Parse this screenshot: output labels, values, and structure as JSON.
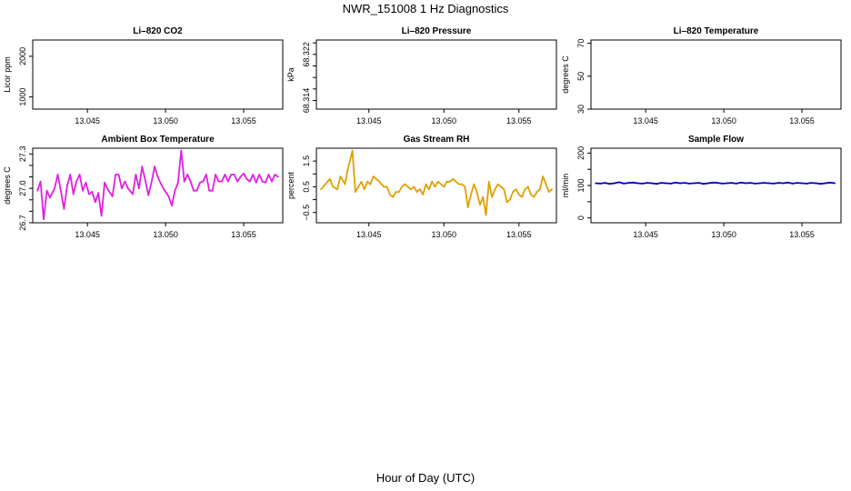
{
  "figure": {
    "title": "NWR_151008  1 Hz Diagnostics",
    "xlabel": "Hour of Day (UTC)"
  },
  "chart_data": [
    {
      "type": "line",
      "title": "Li–820 CO2",
      "ylabel": "Licor ppm",
      "xlim": [
        13.0415,
        13.0575
      ],
      "ylim": [
        700,
        2400
      ],
      "xticks": [
        13.045,
        13.05,
        13.055
      ],
      "xtick_labels": [
        "13.045",
        "13.050",
        "13.055"
      ],
      "yticks": [
        1000,
        2000
      ],
      "ytick_labels": [
        "1000",
        "2000"
      ],
      "series": [
        {
          "x": [],
          "y": [],
          "color": "#000000"
        }
      ]
    },
    {
      "type": "line",
      "title": "Li–820 Pressure",
      "ylabel": "kPa",
      "xlim": [
        13.0415,
        13.0575
      ],
      "ylim": [
        68.3125,
        68.3245
      ],
      "xticks": [
        13.045,
        13.05,
        13.055
      ],
      "xtick_labels": [
        "13.045",
        "13.050",
        "13.055"
      ],
      "yticks": [
        68.314,
        68.316,
        68.318,
        68.32,
        68.322,
        68.324
      ],
      "ytick_labels": [
        "68.314",
        "",
        "",
        "",
        "68.322",
        ""
      ],
      "series": [
        {
          "x": [],
          "y": [],
          "color": "#000000"
        }
      ]
    },
    {
      "type": "line",
      "title": "Li–820 Temperature",
      "ylabel": "degrees C",
      "xlim": [
        13.0415,
        13.0575
      ],
      "ylim": [
        30,
        72
      ],
      "xticks": [
        13.045,
        13.05,
        13.055
      ],
      "xtick_labels": [
        "13.045",
        "13.050",
        "13.055"
      ],
      "yticks": [
        30,
        50,
        70
      ],
      "ytick_labels": [
        "30",
        "50",
        "70"
      ],
      "series": [
        {
          "x": [],
          "y": [],
          "color": "#000000"
        }
      ]
    },
    {
      "type": "line",
      "title": "Ambient Box Temperature",
      "ylabel": "degrees C",
      "xlim": [
        13.0415,
        13.0575
      ],
      "ylim": [
        26.7,
        27.35
      ],
      "xticks": [
        13.045,
        13.05,
        13.055
      ],
      "xtick_labels": [
        "13.045",
        "13.050",
        "13.055"
      ],
      "yticks": [
        26.7,
        26.8,
        26.9,
        27.0,
        27.1,
        27.2,
        27.3
      ],
      "ytick_labels": [
        "26.7",
        "",
        "",
        "27.0",
        "",
        "",
        "27.3"
      ],
      "series": [
        {
          "color": "#e020e0",
          "x": [
            13.0418,
            13.042,
            13.0422,
            13.0424,
            13.0426,
            13.0429,
            13.0431,
            13.0433,
            13.0435,
            13.0437,
            13.0439,
            13.0441,
            13.0443,
            13.0445,
            13.0447,
            13.0449,
            13.0451,
            13.0453,
            13.0455,
            13.0457,
            13.0459,
            13.0461,
            13.0463,
            13.0466,
            13.0468,
            13.047,
            13.0472,
            13.0474,
            13.0476,
            13.0479,
            13.0481,
            13.0483,
            13.0485,
            13.0487,
            13.0489,
            13.0491,
            13.0493,
            13.0495,
            13.0497,
            13.0499,
            13.0502,
            13.0504,
            13.0506,
            13.0508,
            13.051,
            13.0512,
            13.0514,
            13.0516,
            13.0518,
            13.052,
            13.0522,
            13.0524,
            13.0526,
            13.0528,
            13.053,
            13.0532,
            13.0534,
            13.0536,
            13.0538,
            13.054,
            13.0542,
            13.0544,
            13.0546,
            13.0548,
            13.055,
            13.0552,
            13.0554,
            13.0556,
            13.0558,
            13.056,
            13.0562,
            13.0564,
            13.0566,
            13.0568,
            13.057,
            13.0572
          ],
          "y": [
            26.98,
            27.06,
            26.73,
            26.98,
            26.92,
            27.0,
            27.12,
            26.98,
            26.82,
            27.02,
            27.12,
            26.95,
            27.06,
            27.12,
            26.98,
            27.05,
            26.95,
            26.97,
            26.88,
            26.96,
            26.76,
            27.05,
            26.99,
            26.93,
            27.12,
            27.12,
            27.0,
            27.06,
            27.0,
            26.95,
            27.12,
            27.0,
            27.19,
            27.07,
            26.94,
            27.05,
            27.19,
            27.1,
            27.04,
            26.99,
            26.93,
            26.85,
            26.98,
            27.05,
            27.33,
            27.06,
            27.12,
            27.06,
            26.98,
            26.98,
            27.05,
            27.06,
            27.12,
            26.98,
            26.98,
            27.12,
            27.06,
            27.06,
            27.12,
            27.06,
            27.12,
            27.12,
            27.06,
            27.1,
            27.13,
            27.08,
            27.06,
            27.12,
            27.05,
            27.12,
            27.06,
            27.05,
            27.12,
            27.06,
            27.12,
            27.1
          ]
        }
      ]
    },
    {
      "type": "line",
      "title": "Gas Stream RH",
      "ylabel": "percent",
      "xlim": [
        13.0415,
        13.0575
      ],
      "ylim": [
        -0.9,
        2.0
      ],
      "xticks": [
        13.045,
        13.05,
        13.055
      ],
      "xtick_labels": [
        "13.045",
        "13.050",
        "13.055"
      ],
      "yticks": [
        -0.5,
        0.0,
        0.5,
        1.0,
        1.5
      ],
      "ytick_labels": [
        "−0.5",
        "",
        "0.5",
        "",
        "1.5"
      ],
      "series": [
        {
          "color": "#e0a000",
          "x": [
            13.0418,
            13.0421,
            13.0424,
            13.0426,
            13.0429,
            13.0431,
            13.0434,
            13.0436,
            13.0439,
            13.0441,
            13.0443,
            13.0445,
            13.0447,
            13.0449,
            13.0451,
            13.0453,
            13.0455,
            13.0457,
            13.046,
            13.0462,
            13.0464,
            13.0466,
            13.0468,
            13.047,
            13.0472,
            13.0474,
            13.0476,
            13.0478,
            13.048,
            13.0482,
            13.0484,
            13.0486,
            13.0488,
            13.049,
            13.0492,
            13.0494,
            13.0496,
            13.0498,
            13.05,
            13.0502,
            13.0504,
            13.0506,
            13.0508,
            13.051,
            13.0512,
            13.0514,
            13.0516,
            13.0518,
            13.052,
            13.0522,
            13.0524,
            13.0526,
            13.0528,
            13.053,
            13.0532,
            13.0534,
            13.0536,
            13.0538,
            13.054,
            13.0542,
            13.0544,
            13.0546,
            13.0548,
            13.055,
            13.0552,
            13.0554,
            13.0556,
            13.0558,
            13.056,
            13.0562,
            13.0564,
            13.0566,
            13.0568,
            13.057,
            13.0572
          ],
          "y": [
            0.4,
            0.6,
            0.8,
            0.5,
            0.4,
            0.9,
            0.6,
            1.2,
            1.9,
            0.3,
            0.5,
            0.7,
            0.4,
            0.7,
            0.6,
            0.9,
            0.8,
            0.7,
            0.5,
            0.5,
            0.2,
            0.1,
            0.3,
            0.3,
            0.5,
            0.6,
            0.5,
            0.4,
            0.5,
            0.3,
            0.4,
            0.2,
            0.6,
            0.4,
            0.7,
            0.5,
            0.7,
            0.6,
            0.5,
            0.7,
            0.7,
            0.8,
            0.7,
            0.6,
            0.6,
            0.5,
            -0.3,
            0.2,
            0.6,
            0.3,
            -0.2,
            0.1,
            -0.6,
            0.7,
            0.1,
            0.4,
            0.6,
            0.5,
            0.4,
            -0.1,
            0.0,
            0.3,
            0.4,
            0.2,
            0.1,
            0.4,
            0.5,
            0.2,
            0.1,
            0.3,
            0.4,
            0.9,
            0.6,
            0.3,
            0.4
          ]
        }
      ]
    },
    {
      "type": "line",
      "title": "Sample Flow",
      "ylabel": "ml/min",
      "xlim": [
        13.0415,
        13.0575
      ],
      "ylim": [
        -15,
        215
      ],
      "xticks": [
        13.045,
        13.05,
        13.055
      ],
      "xtick_labels": [
        "13.045",
        "13.050",
        "13.055"
      ],
      "yticks": [
        0,
        50,
        100,
        150,
        200
      ],
      "ytick_labels": [
        "0",
        "",
        "100",
        "",
        "200"
      ],
      "series": [
        {
          "color": "#0000c0",
          "x": [
            13.0418,
            13.0421,
            13.0424,
            13.0427,
            13.043,
            13.0433,
            13.0436,
            13.0439,
            13.0442,
            13.0445,
            13.0448,
            13.0451,
            13.0454,
            13.0457,
            13.046,
            13.0463,
            13.0466,
            13.0469,
            13.0472,
            13.0475,
            13.0478,
            13.0481,
            13.0484,
            13.0487,
            13.049,
            13.0493,
            13.0496,
            13.0499,
            13.0502,
            13.0505,
            13.0508,
            13.0511,
            13.0514,
            13.0517,
            13.052,
            13.0523,
            13.0526,
            13.0529,
            13.0532,
            13.0535,
            13.0538,
            13.0541,
            13.0544,
            13.0547,
            13.055,
            13.0553,
            13.0556,
            13.0559,
            13.0562,
            13.0565,
            13.0568,
            13.0571
          ],
          "y": [
            107,
            106,
            108,
            105,
            107,
            110,
            106,
            108,
            109,
            107,
            106,
            108,
            107,
            105,
            108,
            107,
            106,
            109,
            107,
            108,
            106,
            107,
            108,
            105,
            107,
            109,
            108,
            106,
            107,
            108,
            106,
            109,
            107,
            108,
            106,
            107,
            108,
            107,
            106,
            108,
            107,
            109,
            106,
            108,
            107,
            106,
            108,
            107,
            105,
            107,
            109,
            107
          ]
        }
      ]
    }
  ]
}
